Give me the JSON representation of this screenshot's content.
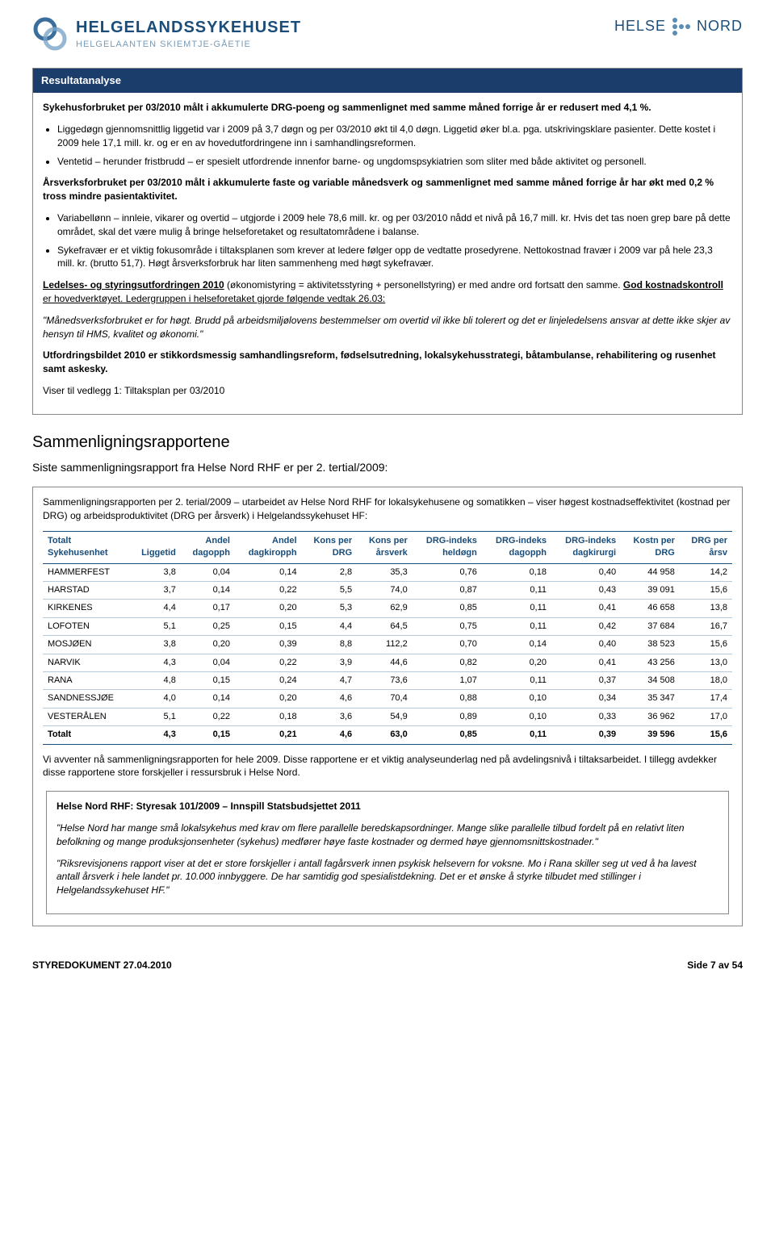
{
  "header": {
    "org_title": "HELGELANDSSYKEHUSET",
    "org_sub": "HELGELAANTEN SKIEMTJE-GÅETIE",
    "right_1": "HELSE",
    "right_2": "NORD"
  },
  "resultbox": {
    "title": "Resultatanalyse",
    "p1": "Sykehusforbruket per 03/2010 målt i akkumulerte DRG-poeng og sammenlignet med samme måned forrige år er redusert med 4,1 %.",
    "li1": "Liggedøgn gjennomsnittlig liggetid var i 2009 på 3,7 døgn og per 03/2010 økt til 4,0 døgn. Liggetid øker bl.a. pga. utskrivingsklare pasienter. Dette kostet i 2009 hele 17,1 mill. kr. og er en av hovedutfordringene inn i samhandlingsreformen.",
    "li2": "Ventetid – herunder fristbrudd – er spesielt utfordrende innenfor barne- og ungdomspsykiatrien som sliter med både aktivitet og personell.",
    "p2": "Årsverksforbruket per 03/2010 målt i akkumulerte faste og variable månedsverk og sammenlignet med samme måned forrige år har økt med 0,2 % tross mindre pasientaktivitet.",
    "li3": "Variabellønn – innleie, vikarer og overtid – utgjorde i 2009 hele 78,6 mill. kr. og per 03/2010 nådd et nivå på 16,7 mill. kr. Hvis det tas noen grep bare på dette området, skal det være mulig å bringe helseforetaket og resultatområdene i balanse.",
    "li4": "Sykefravær er et viktig fokusområde i tiltaksplanen som krever at ledere følger opp de vedtatte prosedyrene. Nettokostnad fravær i 2009 var på hele 23,3 mill. kr. (brutto 51,7). Høgt årsverksforbruk har liten sammenheng med høgt sykefravær.",
    "p3a": "Ledelses- og styringsutfordringen 2010",
    "p3b": " (økonomistyring = aktivitetsstyring + personellstyring) er med andre ord fortsatt den samme. ",
    "p3c": "God kostnadskontroll",
    "p3d": " er hovedverktøyet. Ledergruppen i helseforetaket gjorde følgende vedtak 26.03:",
    "p4": "\"Månedsverksforbruket er for høgt. Brudd på arbeidsmiljølovens bestemmelser om overtid vil ikke bli tolerert og det er linjeledelsens ansvar at dette ikke skjer av hensyn til HMS, kvalitet og økonomi.\"",
    "p5": "Utfordringsbildet 2010 er stikkordsmessig samhandlingsreform, fødselsutredning, lokalsykehusstrategi, båtambulanse, rehabilitering og rusenhet samt askesky.",
    "p6": "Viser til vedlegg 1: Tiltaksplan per 03/2010"
  },
  "section": {
    "title": "Sammenligningsrapportene",
    "sub": "Siste sammenligningsrapport fra Helse Nord RHF er per 2. tertial/2009:"
  },
  "compbox": {
    "intro": "Sammenligningsrapporten per 2. terial/2009 – utarbeidet av Helse Nord RHF for lokalsykehusene og somatikken – viser høgest kostnadseffektivitet (kostnad per DRG) og arbeidsproduktivitet (DRG per årsverk) i Helgelandssykehuset HF:",
    "outro": "Vi avventer nå sammenligningsrapporten for hele 2009. Disse rapportene er et viktig analyseunderlag ned på avdelingsnivå i tiltaksarbeidet. I tillegg avdekker disse rapportene store forskjeller i ressursbruk i Helse Nord."
  },
  "table": {
    "columns": [
      {
        "l1": "Totalt",
        "l2": "Sykehusenhet"
      },
      {
        "l1": "",
        "l2": "Liggetid"
      },
      {
        "l1": "Andel",
        "l2": "dagopph"
      },
      {
        "l1": "Andel",
        "l2": "dagkiropph"
      },
      {
        "l1": "Kons per",
        "l2": "DRG"
      },
      {
        "l1": "Kons per",
        "l2": "årsverk"
      },
      {
        "l1": "DRG-indeks",
        "l2": "heldøgn"
      },
      {
        "l1": "DRG-indeks",
        "l2": "dagopph"
      },
      {
        "l1": "DRG-indeks",
        "l2": "dagkirurgi"
      },
      {
        "l1": "Kostn per",
        "l2": "DRG"
      },
      {
        "l1": "DRG per",
        "l2": "årsv"
      }
    ],
    "rows": [
      [
        "HAMMERFEST",
        "3,8",
        "0,04",
        "0,14",
        "2,8",
        "35,3",
        "0,76",
        "0,18",
        "0,40",
        "44 958",
        "14,2"
      ],
      [
        "HARSTAD",
        "3,7",
        "0,14",
        "0,22",
        "5,5",
        "74,0",
        "0,87",
        "0,11",
        "0,43",
        "39 091",
        "15,6"
      ],
      [
        "KIRKENES",
        "4,4",
        "0,17",
        "0,20",
        "5,3",
        "62,9",
        "0,85",
        "0,11",
        "0,41",
        "46 658",
        "13,8"
      ],
      [
        "LOFOTEN",
        "5,1",
        "0,25",
        "0,15",
        "4,4",
        "64,5",
        "0,75",
        "0,11",
        "0,42",
        "37 684",
        "16,7"
      ],
      [
        "MOSJØEN",
        "3,8",
        "0,20",
        "0,39",
        "8,8",
        "112,2",
        "0,70",
        "0,14",
        "0,40",
        "38 523",
        "15,6"
      ],
      [
        "NARVIK",
        "4,3",
        "0,04",
        "0,22",
        "3,9",
        "44,6",
        "0,82",
        "0,20",
        "0,41",
        "43 256",
        "13,0"
      ],
      [
        "RANA",
        "4,8",
        "0,15",
        "0,24",
        "4,7",
        "73,6",
        "1,07",
        "0,11",
        "0,37",
        "34 508",
        "18,0"
      ],
      [
        "SANDNESSJØE",
        "4,0",
        "0,14",
        "0,20",
        "4,6",
        "70,4",
        "0,88",
        "0,10",
        "0,34",
        "35 347",
        "17,4"
      ],
      [
        "VESTERÅLEN",
        "5,1",
        "0,22",
        "0,18",
        "3,6",
        "54,9",
        "0,89",
        "0,10",
        "0,33",
        "36 962",
        "17,0"
      ]
    ],
    "total": [
      "Totalt",
      "4,3",
      "0,15",
      "0,21",
      "4,6",
      "63,0",
      "0,85",
      "0,11",
      "0,39",
      "39 596",
      "15,6"
    ],
    "col_align": [
      "left",
      "right",
      "right",
      "right",
      "right",
      "right",
      "right",
      "right",
      "right",
      "right",
      "right"
    ],
    "header_color": "#1a4d7a",
    "row_border_color": "#b5c9db"
  },
  "innerbox": {
    "title": "Helse Nord RHF: Styresak 101/2009 – Innspill Statsbudsjettet 2011",
    "p1": "\"Helse Nord har mange små lokalsykehus med krav om flere parallelle beredskapsordninger. Mange slike parallelle tilbud fordelt på en relativt liten befolkning og mange produksjonsenheter (sykehus) medfører høye faste kostnader og dermed høye gjennomsnittskostnader.\"",
    "p2": "\"Riksrevisjonens rapport viser at det er store forskjeller i antall fagårsverk innen psykisk helsevern for voksne. Mo i Rana skiller seg ut ved å ha lavest antall årsverk i hele landet pr. 10.000 innbyggere. De har samtidig god spesialistdekning. Det er et ønske å styrke tilbudet med stillinger i Helgelandssykehuset HF.\""
  },
  "footer": {
    "left": "STYREDOKUMENT 27.04.2010",
    "right": "Side 7 av 54"
  },
  "style": {
    "background": "#ffffff",
    "text_color": "#000000",
    "box_header_bg": "#1a3d6b",
    "box_header_text": "#ffffff",
    "brand_color": "#1a4d7a",
    "body_fontsize": 12,
    "title_fontsize": 20
  }
}
